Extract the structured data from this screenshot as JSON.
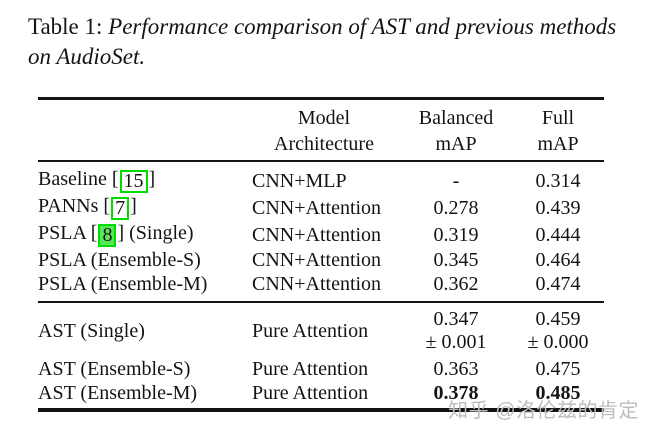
{
  "caption": {
    "prefix": "Table 1: ",
    "italic_line1": "Performance comparison of AST and previous methods",
    "italic_line2": "on AudioSet."
  },
  "table": {
    "headers": {
      "model": [
        "Model",
        "Architecture"
      ],
      "balanced": [
        "Balanced",
        "mAP"
      ],
      "full": [
        "Full",
        "mAP"
      ]
    },
    "rows": [
      {
        "name_pre": "Baseline [",
        "cite": "15",
        "name_post": "]",
        "arch": "CNN+MLP",
        "balanced": "-",
        "full": "0.314"
      },
      {
        "name_pre": "PANNs [",
        "cite": "7",
        "name_post": "]",
        "arch": "CNN+Attention",
        "balanced": "0.278",
        "full": "0.439"
      },
      {
        "name_pre": "PSLA [",
        "cite": "8",
        "name_post": "] (Single)",
        "arch": "CNN+Attention",
        "balanced": "0.319",
        "full": "0.444"
      },
      {
        "name": "PSLA (Ensemble-S)",
        "arch": "CNN+Attention",
        "balanced": "0.345",
        "full": "0.464"
      },
      {
        "name": "PSLA (Ensemble-M)",
        "arch": "CNN+Attention",
        "balanced": "0.362",
        "full": "0.474"
      },
      {
        "name": "AST (Single)",
        "arch": "Pure Attention",
        "balanced": "0.347",
        "balanced_pm": "± 0.001",
        "full": "0.459",
        "full_pm": "± 0.000"
      },
      {
        "name": "AST (Ensemble-S)",
        "arch": "Pure Attention",
        "balanced": "0.363",
        "full": "0.475"
      },
      {
        "name": "AST (Ensemble-M)",
        "arch": "Pure Attention",
        "balanced": "0.378",
        "full": "0.485"
      }
    ]
  },
  "watermark": {
    "text": "知乎 @洛伦兹的肯定"
  },
  "colors": {
    "citation_box_border": "#00db00",
    "citation_box_fill": "#58e75a",
    "watermark_gray": "#bdbdbd",
    "rule_black": "#141414"
  }
}
